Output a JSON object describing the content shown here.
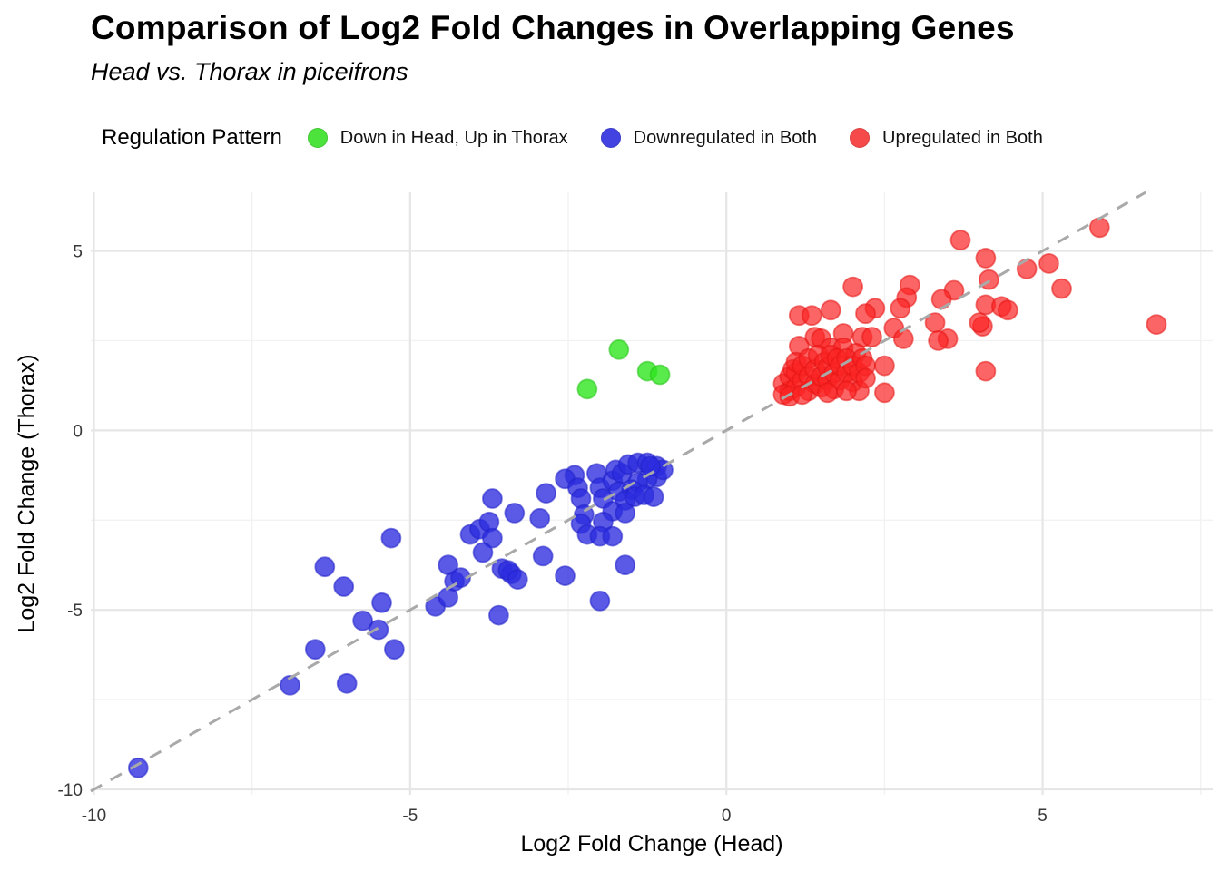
{
  "page": {
    "title": "Comparison of Log2 Fold Changes in Overlapping Genes",
    "subtitle": "Head vs. Thorax in piceifrons"
  },
  "legend": {
    "title": "Regulation Pattern",
    "items": [
      {
        "label": "Down in Head, Up in Thorax",
        "color": "#4ce33c"
      },
      {
        "label": "Downregulated in Both",
        "color": "#4343e2"
      },
      {
        "label": "Upregulated in Both",
        "color": "#f64a4a"
      }
    ]
  },
  "chart_data": {
    "type": "scatter",
    "title": "Comparison of Log2 Fold Changes in Overlapping Genes",
    "subtitle": "Head vs. Thorax in piceifrons",
    "xlabel": "Log2 Fold Change (Head)",
    "ylabel": "Log2 Fold Change (Thorax)",
    "legend_title": "Regulation Pattern",
    "legend_position": "top",
    "grid": true,
    "xlim": [
      -10.05,
      7.69
    ],
    "ylim": [
      -10.15,
      6.63
    ],
    "x_major_ticks": [
      -10,
      -5,
      0,
      5
    ],
    "x_minor_ticks": [
      -7.5,
      -2.5,
      2.5,
      7.5
    ],
    "y_major_ticks": [
      -10,
      -5,
      0,
      5
    ],
    "y_minor_ticks": [
      -7.5,
      -2.5,
      2.5
    ],
    "reference_line": {
      "kind": "y=x",
      "style": "dashed",
      "color": "#a9a9a9"
    },
    "point_radius": 10.5,
    "series": [
      {
        "name": "Down in Head, Up in Thorax",
        "fill": "#2fe51f",
        "stroke": "#27c317",
        "fill_opacity": 0.8,
        "points": [
          [
            -1.7,
            2.25
          ],
          [
            -2.2,
            1.15
          ],
          [
            -1.25,
            1.65
          ],
          [
            -1.05,
            1.55
          ]
        ]
      },
      {
        "name": "Downregulated in Both",
        "fill": "#2b2bdf",
        "stroke": "#2121c9",
        "fill_opacity": 0.78,
        "points": [
          [
            -9.3,
            -9.4
          ],
          [
            -6.9,
            -7.1
          ],
          [
            -6.0,
            -7.05
          ],
          [
            -6.5,
            -6.1
          ],
          [
            -5.25,
            -6.1
          ],
          [
            -6.35,
            -3.8
          ],
          [
            -6.05,
            -4.35
          ],
          [
            -5.45,
            -4.8
          ],
          [
            -5.75,
            -5.3
          ],
          [
            -5.5,
            -5.55
          ],
          [
            -5.3,
            -3.0
          ],
          [
            -4.6,
            -4.9
          ],
          [
            -4.4,
            -4.65
          ],
          [
            -4.4,
            -3.75
          ],
          [
            -4.3,
            -4.2
          ],
          [
            -4.2,
            -4.1
          ],
          [
            -4.05,
            -2.9
          ],
          [
            -3.9,
            -2.75
          ],
          [
            -3.75,
            -2.55
          ],
          [
            -3.7,
            -3.0
          ],
          [
            -3.85,
            -3.4
          ],
          [
            -3.55,
            -3.85
          ],
          [
            -3.4,
            -4.0
          ],
          [
            -3.6,
            -5.15
          ],
          [
            -3.7,
            -1.9
          ],
          [
            -3.35,
            -2.3
          ],
          [
            -2.95,
            -2.45
          ],
          [
            -2.9,
            -3.5
          ],
          [
            -2.55,
            -4.05
          ],
          [
            -3.45,
            -3.9
          ],
          [
            -3.3,
            -4.15
          ],
          [
            -2.0,
            -4.75
          ],
          [
            -1.6,
            -3.75
          ],
          [
            -2.85,
            -1.75
          ],
          [
            -2.4,
            -1.25
          ],
          [
            -2.55,
            -1.35
          ],
          [
            -2.35,
            -1.6
          ],
          [
            -2.3,
            -1.9
          ],
          [
            -2.25,
            -2.35
          ],
          [
            -2.3,
            -2.6
          ],
          [
            -2.2,
            -2.9
          ],
          [
            -2.05,
            -1.2
          ],
          [
            -2.0,
            -1.6
          ],
          [
            -1.95,
            -1.9
          ],
          [
            -1.8,
            -1.4
          ],
          [
            -1.75,
            -1.1
          ],
          [
            -1.65,
            -1.2
          ],
          [
            -1.55,
            -0.95
          ],
          [
            -1.4,
            -0.9
          ],
          [
            -1.25,
            -0.9
          ],
          [
            -1.1,
            -1.0
          ],
          [
            -1.1,
            -1.3
          ],
          [
            -1.25,
            -1.35
          ],
          [
            -1.4,
            -1.45
          ],
          [
            -1.5,
            -1.65
          ],
          [
            -1.7,
            -1.7
          ],
          [
            -1.6,
            -1.95
          ],
          [
            -1.45,
            -1.85
          ],
          [
            -1.3,
            -1.8
          ],
          [
            -1.15,
            -1.85
          ],
          [
            -1.8,
            -2.25
          ],
          [
            -1.6,
            -2.3
          ],
          [
            -1.95,
            -2.55
          ],
          [
            -2.0,
            -2.95
          ],
          [
            -1.8,
            -2.95
          ],
          [
            -1.0,
            -1.1
          ],
          [
            -1.2,
            -1.0
          ]
        ]
      },
      {
        "name": "Upregulated in Both",
        "fill": "#fb2323",
        "stroke": "#e31414",
        "fill_opacity": 0.7,
        "points": [
          [
            5.9,
            5.65
          ],
          [
            3.7,
            5.3
          ],
          [
            4.1,
            4.8
          ],
          [
            4.75,
            4.5
          ],
          [
            5.1,
            4.65
          ],
          [
            4.15,
            4.2
          ],
          [
            6.8,
            2.95
          ],
          [
            5.3,
            3.95
          ],
          [
            4.1,
            3.5
          ],
          [
            4.35,
            3.45
          ],
          [
            4.45,
            3.35
          ],
          [
            4.05,
            2.9
          ],
          [
            4.1,
            1.65
          ],
          [
            2.0,
            4.0
          ],
          [
            2.9,
            4.05
          ],
          [
            2.85,
            3.7
          ],
          [
            3.6,
            3.9
          ],
          [
            3.4,
            3.65
          ],
          [
            2.75,
            3.4
          ],
          [
            2.35,
            3.4
          ],
          [
            2.2,
            3.25
          ],
          [
            1.15,
            3.2
          ],
          [
            1.35,
            3.2
          ],
          [
            1.65,
            3.35
          ],
          [
            3.3,
            3.0
          ],
          [
            4.0,
            3.0
          ],
          [
            2.65,
            2.85
          ],
          [
            2.8,
            2.55
          ],
          [
            1.85,
            2.7
          ],
          [
            1.4,
            2.6
          ],
          [
            1.5,
            2.55
          ],
          [
            2.15,
            2.6
          ],
          [
            2.3,
            2.6
          ],
          [
            3.5,
            2.55
          ],
          [
            3.35,
            2.5
          ],
          [
            1.15,
            2.35
          ],
          [
            1.65,
            2.3
          ],
          [
            1.85,
            2.3
          ],
          [
            2.05,
            2.15
          ],
          [
            0.9,
            1.3
          ],
          [
            1.0,
            1.1
          ],
          [
            1.0,
            1.5
          ],
          [
            1.05,
            1.7
          ],
          [
            1.1,
            1.2
          ],
          [
            1.1,
            1.6
          ],
          [
            1.1,
            1.9
          ],
          [
            1.2,
            1.4
          ],
          [
            1.2,
            1.8
          ],
          [
            1.3,
            1.1
          ],
          [
            1.3,
            1.5
          ],
          [
            1.3,
            2.0
          ],
          [
            1.4,
            1.3
          ],
          [
            1.4,
            1.7
          ],
          [
            1.45,
            2.1
          ],
          [
            1.5,
            1.2
          ],
          [
            1.5,
            1.5
          ],
          [
            1.55,
            1.9
          ],
          [
            1.6,
            1.4
          ],
          [
            1.6,
            1.75
          ],
          [
            1.65,
            2.1
          ],
          [
            1.7,
            1.15
          ],
          [
            1.7,
            1.6
          ],
          [
            1.75,
            2.0
          ],
          [
            1.8,
            1.4
          ],
          [
            1.8,
            1.8
          ],
          [
            1.9,
            1.6
          ],
          [
            1.9,
            2.0
          ],
          [
            2.0,
            1.35
          ],
          [
            2.0,
            1.8
          ],
          [
            2.1,
            1.6
          ],
          [
            2.15,
            2.0
          ],
          [
            2.2,
            1.8
          ],
          [
            2.5,
            1.8
          ],
          [
            2.1,
            1.1
          ],
          [
            2.2,
            1.45
          ],
          [
            0.9,
            1.0
          ],
          [
            1.0,
            0.95
          ],
          [
            2.5,
            1.05
          ],
          [
            1.6,
            1.05
          ],
          [
            1.9,
            1.1
          ],
          [
            1.2,
            1.0
          ]
        ]
      }
    ]
  }
}
